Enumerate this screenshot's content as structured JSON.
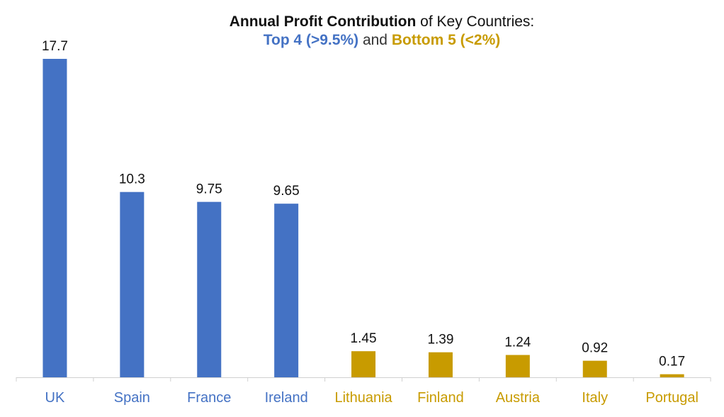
{
  "title": {
    "line1_bold": "Annual Profit Contribution",
    "line1_rest": " of Key Countries:",
    "line2_top": "Top 4 (>9.5%)",
    "line2_mid": " and ",
    "line2_bottom": "Bottom 5 (<2%)"
  },
  "colors": {
    "top": "#4472C4",
    "bottom": "#C89B00",
    "axis": "#D0D0D0",
    "label": "#111111"
  },
  "chart_data": {
    "type": "bar",
    "title": "Annual Profit Contribution of Key Countries: Top 4 (>9.5%) and Bottom 5 (<2%)",
    "xlabel": "",
    "ylabel": "",
    "ylim": [
      0,
      18.5
    ],
    "grid": false,
    "categories": [
      "UK",
      "Spain",
      "France",
      "Ireland",
      "Lithuania",
      "Finland",
      "Austria",
      "Italy",
      "Portugal"
    ],
    "values": [
      17.7,
      10.3,
      9.75,
      9.65,
      1.45,
      1.39,
      1.24,
      0.92,
      0.17
    ],
    "value_labels": [
      "17.7",
      "10.3",
      "9.75",
      "9.65",
      "1.45",
      "1.39",
      "1.24",
      "0.92",
      "0.17"
    ],
    "groups": [
      "top",
      "top",
      "top",
      "top",
      "bottom",
      "bottom",
      "bottom",
      "bottom",
      "bottom"
    ]
  }
}
